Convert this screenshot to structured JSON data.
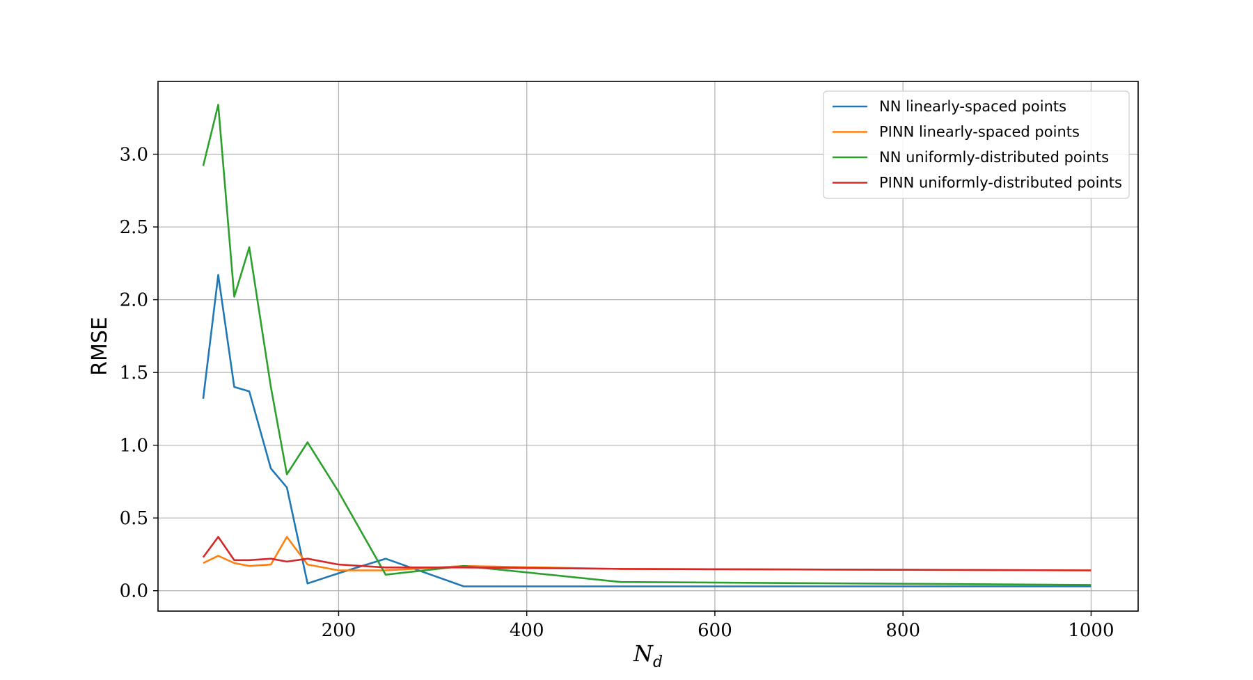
{
  "chart_data": {
    "type": "line",
    "title": "",
    "xlabel_main": "N",
    "xlabel_sub": "d",
    "ylabel": "RMSE",
    "xlim": [
      8,
      1050
    ],
    "ylim": [
      -0.14,
      3.5
    ],
    "xticks": [
      200,
      400,
      600,
      800,
      1000
    ],
    "yticks": [
      0.0,
      0.5,
      1.0,
      1.5,
      2.0,
      2.5,
      3.0
    ],
    "grid": true,
    "legend_position": "top-right",
    "series": [
      {
        "name": "NN linearly-spaced points",
        "color": "#1f77b4",
        "x": [
          56,
          72,
          89,
          105,
          128,
          145,
          167,
          200,
          250,
          333,
          500,
          1000
        ],
        "y": [
          1.32,
          2.17,
          1.4,
          1.37,
          0.84,
          0.71,
          0.05,
          0.12,
          0.22,
          0.03,
          0.03,
          0.03
        ]
      },
      {
        "name": "PINN linearly-spaced points",
        "color": "#ff7f0e",
        "x": [
          56,
          72,
          89,
          105,
          128,
          145,
          167,
          200,
          250,
          333,
          500,
          1000
        ],
        "y": [
          0.19,
          0.24,
          0.19,
          0.17,
          0.18,
          0.37,
          0.18,
          0.14,
          0.14,
          0.17,
          0.15,
          0.14
        ]
      },
      {
        "name": "NN uniformly-distributed points",
        "color": "#2ca02c",
        "x": [
          56,
          72,
          89,
          105,
          128,
          145,
          167,
          200,
          250,
          333,
          500,
          1000
        ],
        "y": [
          2.92,
          3.34,
          2.02,
          2.36,
          1.4,
          0.8,
          1.02,
          0.68,
          0.11,
          0.17,
          0.06,
          0.04
        ]
      },
      {
        "name": "PINN uniformly-distributed points",
        "color": "#d62728",
        "x": [
          56,
          72,
          89,
          105,
          128,
          145,
          167,
          200,
          250,
          333,
          500,
          1000
        ],
        "y": [
          0.23,
          0.37,
          0.21,
          0.21,
          0.22,
          0.2,
          0.22,
          0.18,
          0.16,
          0.16,
          0.15,
          0.14
        ]
      }
    ]
  }
}
